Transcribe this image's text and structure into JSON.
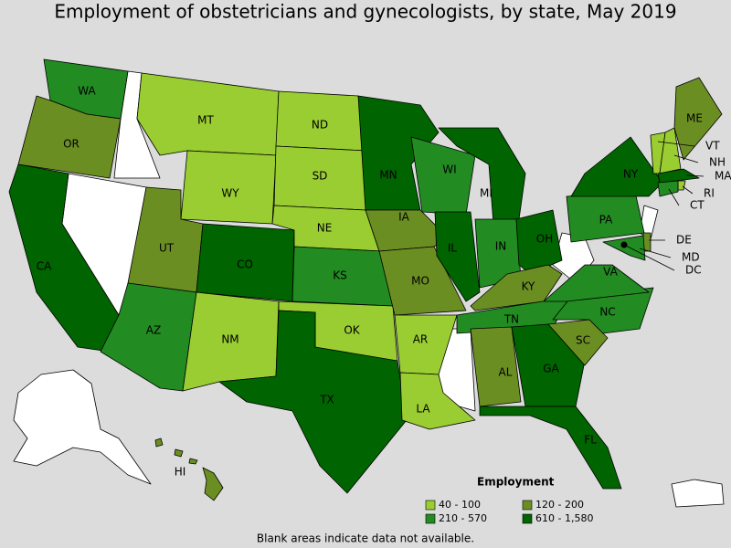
{
  "title": "Employment of obstetricians and gynecologists, by state, May 2019",
  "states": [
    {
      "label": "WA",
      "class": 2
    },
    {
      "label": "OR",
      "class": 1
    },
    {
      "label": "CA",
      "class": 3
    },
    {
      "label": "MT",
      "class": 0
    },
    {
      "label": "WY",
      "class": 0
    },
    {
      "label": "UT",
      "class": 1
    },
    {
      "label": "CO",
      "class": 3
    },
    {
      "label": "AZ",
      "class": 2
    },
    {
      "label": "NM",
      "class": 0
    },
    {
      "label": "ND",
      "class": 0
    },
    {
      "label": "SD",
      "class": 0
    },
    {
      "label": "NE",
      "class": 0
    },
    {
      "label": "KS",
      "class": 2
    },
    {
      "label": "OK",
      "class": 0
    },
    {
      "label": "TX",
      "class": 3
    },
    {
      "label": "MN",
      "class": 3
    },
    {
      "label": "IA",
      "class": 1
    },
    {
      "label": "MO",
      "class": 1
    },
    {
      "label": "AR",
      "class": 0
    },
    {
      "label": "LA",
      "class": 0
    },
    {
      "label": "WI",
      "class": 2
    },
    {
      "label": "IL",
      "class": 3
    },
    {
      "label": "MI",
      "class": 3
    },
    {
      "label": "IN",
      "class": 2
    },
    {
      "label": "OH",
      "class": 3
    },
    {
      "label": "KY",
      "class": 1
    },
    {
      "label": "TN",
      "class": 2
    },
    {
      "label": "AL",
      "class": 1
    },
    {
      "label": "GA",
      "class": 3
    },
    {
      "label": "FL",
      "class": 3
    },
    {
      "label": "SC",
      "class": 1
    },
    {
      "label": "NC",
      "class": 2
    },
    {
      "label": "VA",
      "class": 2
    },
    {
      "label": "PA",
      "class": 2
    },
    {
      "label": "NY",
      "class": 3
    },
    {
      "label": "ME",
      "class": 1
    },
    {
      "label": "VT",
      "class": 0
    },
    {
      "label": "NH",
      "class": 0
    },
    {
      "label": "MA",
      "class": 3
    },
    {
      "label": "RI",
      "class": 0
    },
    {
      "label": "CT",
      "class": 2
    },
    {
      "label": "DE",
      "class": 1
    },
    {
      "label": "MD",
      "class": 2
    },
    {
      "label": "DC",
      "class": 3
    },
    {
      "label": "HI",
      "class": 1
    }
  ],
  "legend": {
    "title": "Employment",
    "items": [
      {
        "label": "40 - 100",
        "color": "#9acd32"
      },
      {
        "label": "120 - 200",
        "color": "#6b8e23"
      },
      {
        "label": "210 - 570",
        "color": "#228b22"
      },
      {
        "label": "610 - 1,580",
        "color": "#006400"
      }
    ]
  },
  "note": "Blank areas indicate data not available."
}
